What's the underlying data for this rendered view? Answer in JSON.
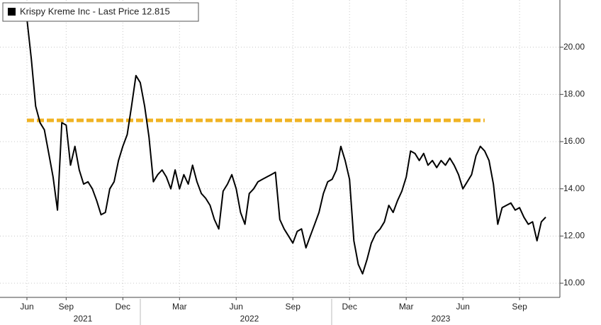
{
  "chart_data": {
    "type": "line",
    "categories": [
      "Jun",
      null,
      null,
      null,
      null,
      null,
      null,
      null,
      null,
      "Sep",
      null,
      null,
      null,
      null,
      null,
      null,
      null,
      null,
      null,
      null,
      null,
      null,
      "Dec",
      null,
      null,
      null,
      null,
      null,
      null,
      null,
      null,
      null,
      null,
      null,
      null,
      "Mar",
      null,
      null,
      null,
      null,
      null,
      null,
      null,
      null,
      null,
      null,
      null,
      null,
      "Jun",
      null,
      null,
      null,
      null,
      null,
      null,
      null,
      null,
      null,
      null,
      null,
      null,
      "Sep",
      null,
      null,
      null,
      null,
      null,
      null,
      null,
      null,
      null,
      null,
      null,
      null,
      "Dec",
      null,
      null,
      null,
      null,
      null,
      null,
      null,
      null,
      null,
      null,
      null,
      null,
      "Mar",
      null,
      null,
      null,
      null,
      null,
      null,
      null,
      null,
      null,
      null,
      null,
      null,
      "Jun",
      null,
      null,
      null,
      null,
      null,
      null,
      null,
      null,
      null,
      null,
      null,
      null,
      "Sep",
      null,
      null,
      null,
      null,
      null,
      null
    ],
    "years": [
      "2021",
      "2022",
      "2023"
    ],
    "series": [
      {
        "name": "Krispy Kreme Inc - Last Price 12.815",
        "color": "#000000",
        "values": [
          21.2,
          19.5,
          17.5,
          16.8,
          16.5,
          15.5,
          14.5,
          13.1,
          16.8,
          16.7,
          15.0,
          15.8,
          14.8,
          14.2,
          14.3,
          14.0,
          13.5,
          12.9,
          13.0,
          14.0,
          14.3,
          15.2,
          15.8,
          16.3,
          17.5,
          18.8,
          18.5,
          17.5,
          16.2,
          14.3,
          14.6,
          14.8,
          14.5,
          14.0,
          14.8,
          14.0,
          14.6,
          14.2,
          15.0,
          14.3,
          13.8,
          13.6,
          13.3,
          12.7,
          12.3,
          13.9,
          14.2,
          14.6,
          14.0,
          13.0,
          12.5,
          13.8,
          14.0,
          14.3,
          14.4,
          14.5,
          14.6,
          14.7,
          12.7,
          12.3,
          12.0,
          11.7,
          12.2,
          12.3,
          11.5,
          12.0,
          12.5,
          13.0,
          13.8,
          14.3,
          14.4,
          14.8,
          15.8,
          15.2,
          14.4,
          11.8,
          10.8,
          10.4,
          11.0,
          11.7,
          12.1,
          12.3,
          12.6,
          13.3,
          13.0,
          13.5,
          13.9,
          14.5,
          15.6,
          15.5,
          15.2,
          15.5,
          15.0,
          15.2,
          14.9,
          15.2,
          15.0,
          15.3,
          15.0,
          14.6,
          14.0,
          14.3,
          14.6,
          15.4,
          15.8,
          15.6,
          15.2,
          14.2,
          12.5,
          13.2,
          13.3,
          13.4,
          13.1,
          13.2,
          12.8,
          12.5,
          12.6,
          11.8,
          12.6,
          12.8
        ]
      }
    ],
    "reference_line": {
      "value": 16.9,
      "color": "#f0b323"
    },
    "ylim": [
      9.4,
      22
    ],
    "yticks": [
      {
        "value": 10,
        "label": "10.00"
      },
      {
        "value": 12,
        "label": "12.00"
      },
      {
        "value": 14,
        "label": "14.00"
      },
      {
        "value": 16,
        "label": "16.00"
      },
      {
        "value": 18,
        "label": "18.00"
      },
      {
        "value": 20,
        "label": "20.00"
      }
    ],
    "grid": true
  }
}
